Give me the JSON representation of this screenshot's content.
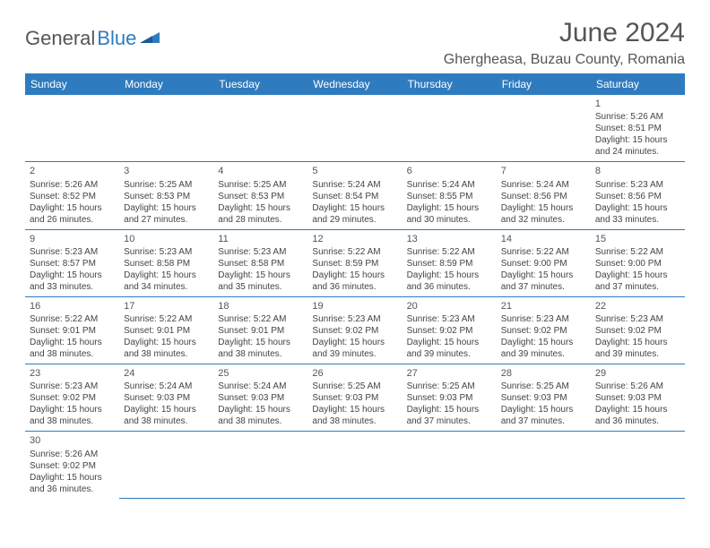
{
  "logo": {
    "part1": "General",
    "part2": "Blue"
  },
  "title": "June 2024",
  "location": "Ghergheasa, Buzau County, Romania",
  "colors": {
    "header_bg": "#2f7bbf",
    "header_text": "#ffffff",
    "cell_border": "#2f7bbf"
  },
  "weekdays": [
    "Sunday",
    "Monday",
    "Tuesday",
    "Wednesday",
    "Thursday",
    "Friday",
    "Saturday"
  ],
  "weeks": [
    [
      null,
      null,
      null,
      null,
      null,
      null,
      {
        "d": "1",
        "sr": "5:26 AM",
        "ss": "8:51 PM",
        "dl1": "15 hours",
        "dl2": "and 24 minutes."
      }
    ],
    [
      {
        "d": "2",
        "sr": "5:26 AM",
        "ss": "8:52 PM",
        "dl1": "15 hours",
        "dl2": "and 26 minutes."
      },
      {
        "d": "3",
        "sr": "5:25 AM",
        "ss": "8:53 PM",
        "dl1": "15 hours",
        "dl2": "and 27 minutes."
      },
      {
        "d": "4",
        "sr": "5:25 AM",
        "ss": "8:53 PM",
        "dl1": "15 hours",
        "dl2": "and 28 minutes."
      },
      {
        "d": "5",
        "sr": "5:24 AM",
        "ss": "8:54 PM",
        "dl1": "15 hours",
        "dl2": "and 29 minutes."
      },
      {
        "d": "6",
        "sr": "5:24 AM",
        "ss": "8:55 PM",
        "dl1": "15 hours",
        "dl2": "and 30 minutes."
      },
      {
        "d": "7",
        "sr": "5:24 AM",
        "ss": "8:56 PM",
        "dl1": "15 hours",
        "dl2": "and 32 minutes."
      },
      {
        "d": "8",
        "sr": "5:23 AM",
        "ss": "8:56 PM",
        "dl1": "15 hours",
        "dl2": "and 33 minutes."
      }
    ],
    [
      {
        "d": "9",
        "sr": "5:23 AM",
        "ss": "8:57 PM",
        "dl1": "15 hours",
        "dl2": "and 33 minutes."
      },
      {
        "d": "10",
        "sr": "5:23 AM",
        "ss": "8:58 PM",
        "dl1": "15 hours",
        "dl2": "and 34 minutes."
      },
      {
        "d": "11",
        "sr": "5:23 AM",
        "ss": "8:58 PM",
        "dl1": "15 hours",
        "dl2": "and 35 minutes."
      },
      {
        "d": "12",
        "sr": "5:22 AM",
        "ss": "8:59 PM",
        "dl1": "15 hours",
        "dl2": "and 36 minutes."
      },
      {
        "d": "13",
        "sr": "5:22 AM",
        "ss": "8:59 PM",
        "dl1": "15 hours",
        "dl2": "and 36 minutes."
      },
      {
        "d": "14",
        "sr": "5:22 AM",
        "ss": "9:00 PM",
        "dl1": "15 hours",
        "dl2": "and 37 minutes."
      },
      {
        "d": "15",
        "sr": "5:22 AM",
        "ss": "9:00 PM",
        "dl1": "15 hours",
        "dl2": "and 37 minutes."
      }
    ],
    [
      {
        "d": "16",
        "sr": "5:22 AM",
        "ss": "9:01 PM",
        "dl1": "15 hours",
        "dl2": "and 38 minutes."
      },
      {
        "d": "17",
        "sr": "5:22 AM",
        "ss": "9:01 PM",
        "dl1": "15 hours",
        "dl2": "and 38 minutes."
      },
      {
        "d": "18",
        "sr": "5:22 AM",
        "ss": "9:01 PM",
        "dl1": "15 hours",
        "dl2": "and 38 minutes."
      },
      {
        "d": "19",
        "sr": "5:23 AM",
        "ss": "9:02 PM",
        "dl1": "15 hours",
        "dl2": "and 39 minutes."
      },
      {
        "d": "20",
        "sr": "5:23 AM",
        "ss": "9:02 PM",
        "dl1": "15 hours",
        "dl2": "and 39 minutes."
      },
      {
        "d": "21",
        "sr": "5:23 AM",
        "ss": "9:02 PM",
        "dl1": "15 hours",
        "dl2": "and 39 minutes."
      },
      {
        "d": "22",
        "sr": "5:23 AM",
        "ss": "9:02 PM",
        "dl1": "15 hours",
        "dl2": "and 39 minutes."
      }
    ],
    [
      {
        "d": "23",
        "sr": "5:23 AM",
        "ss": "9:02 PM",
        "dl1": "15 hours",
        "dl2": "and 38 minutes."
      },
      {
        "d": "24",
        "sr": "5:24 AM",
        "ss": "9:03 PM",
        "dl1": "15 hours",
        "dl2": "and 38 minutes."
      },
      {
        "d": "25",
        "sr": "5:24 AM",
        "ss": "9:03 PM",
        "dl1": "15 hours",
        "dl2": "and 38 minutes."
      },
      {
        "d": "26",
        "sr": "5:25 AM",
        "ss": "9:03 PM",
        "dl1": "15 hours",
        "dl2": "and 38 minutes."
      },
      {
        "d": "27",
        "sr": "5:25 AM",
        "ss": "9:03 PM",
        "dl1": "15 hours",
        "dl2": "and 37 minutes."
      },
      {
        "d": "28",
        "sr": "5:25 AM",
        "ss": "9:03 PM",
        "dl1": "15 hours",
        "dl2": "and 37 minutes."
      },
      {
        "d": "29",
        "sr": "5:26 AM",
        "ss": "9:03 PM",
        "dl1": "15 hours",
        "dl2": "and 36 minutes."
      }
    ],
    [
      {
        "d": "30",
        "sr": "5:26 AM",
        "ss": "9:02 PM",
        "dl1": "15 hours",
        "dl2": "and 36 minutes."
      },
      null,
      null,
      null,
      null,
      null,
      null
    ]
  ],
  "labels": {
    "sunrise": "Sunrise: ",
    "sunset": "Sunset: ",
    "daylight": "Daylight: "
  }
}
